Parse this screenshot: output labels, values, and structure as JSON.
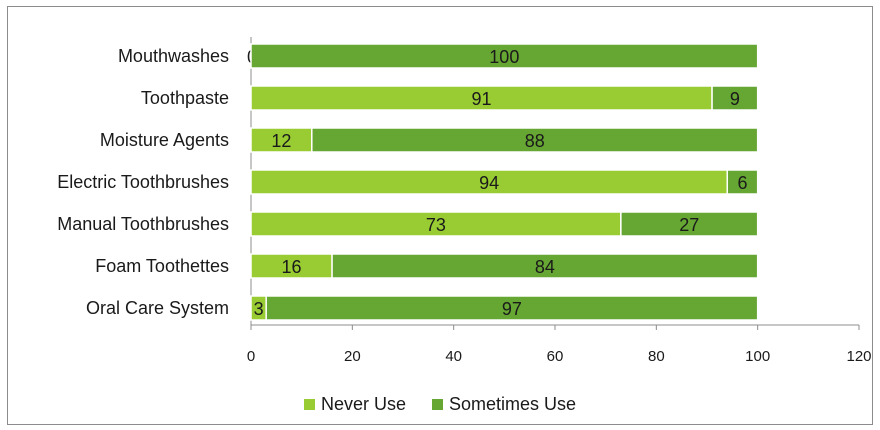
{
  "chart_data": {
    "type": "bar",
    "orientation": "horizontal",
    "stacked": true,
    "categories": [
      "Mouthwashes",
      "Toothpaste",
      "Moisture Agents",
      "Electric Toothbrushes",
      "Manual Toothbrushes",
      "Foam Toothettes",
      "Oral Care System"
    ],
    "series": [
      {
        "name": "Never Use",
        "values": [
          0,
          91,
          12,
          94,
          73,
          16,
          3
        ],
        "color": "#99cc33"
      },
      {
        "name": "Sometimes Use",
        "values": [
          100,
          9,
          88,
          6,
          27,
          84,
          97
        ],
        "color": "#66a633"
      }
    ],
    "xlim": [
      0,
      120
    ],
    "xticks": [
      0,
      20,
      40,
      60,
      80,
      100,
      120
    ],
    "grid": false,
    "legend_position": "bottom",
    "title": "",
    "xlabel": "",
    "ylabel": ""
  }
}
